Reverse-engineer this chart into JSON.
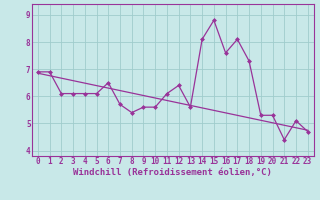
{
  "x": [
    0,
    1,
    2,
    3,
    4,
    5,
    6,
    7,
    8,
    9,
    10,
    11,
    12,
    13,
    14,
    15,
    16,
    17,
    18,
    19,
    20,
    21,
    22,
    23
  ],
  "y_line": [
    6.9,
    6.9,
    6.1,
    6.1,
    6.1,
    6.1,
    6.5,
    5.7,
    5.4,
    5.6,
    5.6,
    6.1,
    6.4,
    5.6,
    8.1,
    8.8,
    7.6,
    8.1,
    7.3,
    5.3,
    5.3,
    4.4,
    5.1,
    4.7
  ],
  "trend_x": [
    0,
    23
  ],
  "trend_y": [
    6.85,
    4.75
  ],
  "background_color": "#c8e8e8",
  "grid_color": "#a0cccc",
  "line_color": "#993399",
  "trend_color": "#993399",
  "markersize": 2.5,
  "xlabel": "Windchill (Refroidissement éolien,°C)",
  "xlim": [
    -0.5,
    23.5
  ],
  "ylim": [
    3.8,
    9.4
  ],
  "yticks": [
    4,
    5,
    6,
    7,
    8,
    9
  ],
  "xticks": [
    0,
    1,
    2,
    3,
    4,
    5,
    6,
    7,
    8,
    9,
    10,
    11,
    12,
    13,
    14,
    15,
    16,
    17,
    18,
    19,
    20,
    21,
    22,
    23
  ],
  "tick_fontsize": 5.5,
  "xlabel_fontsize": 6.5,
  "linewidth": 0.9,
  "trend_linewidth": 0.9
}
